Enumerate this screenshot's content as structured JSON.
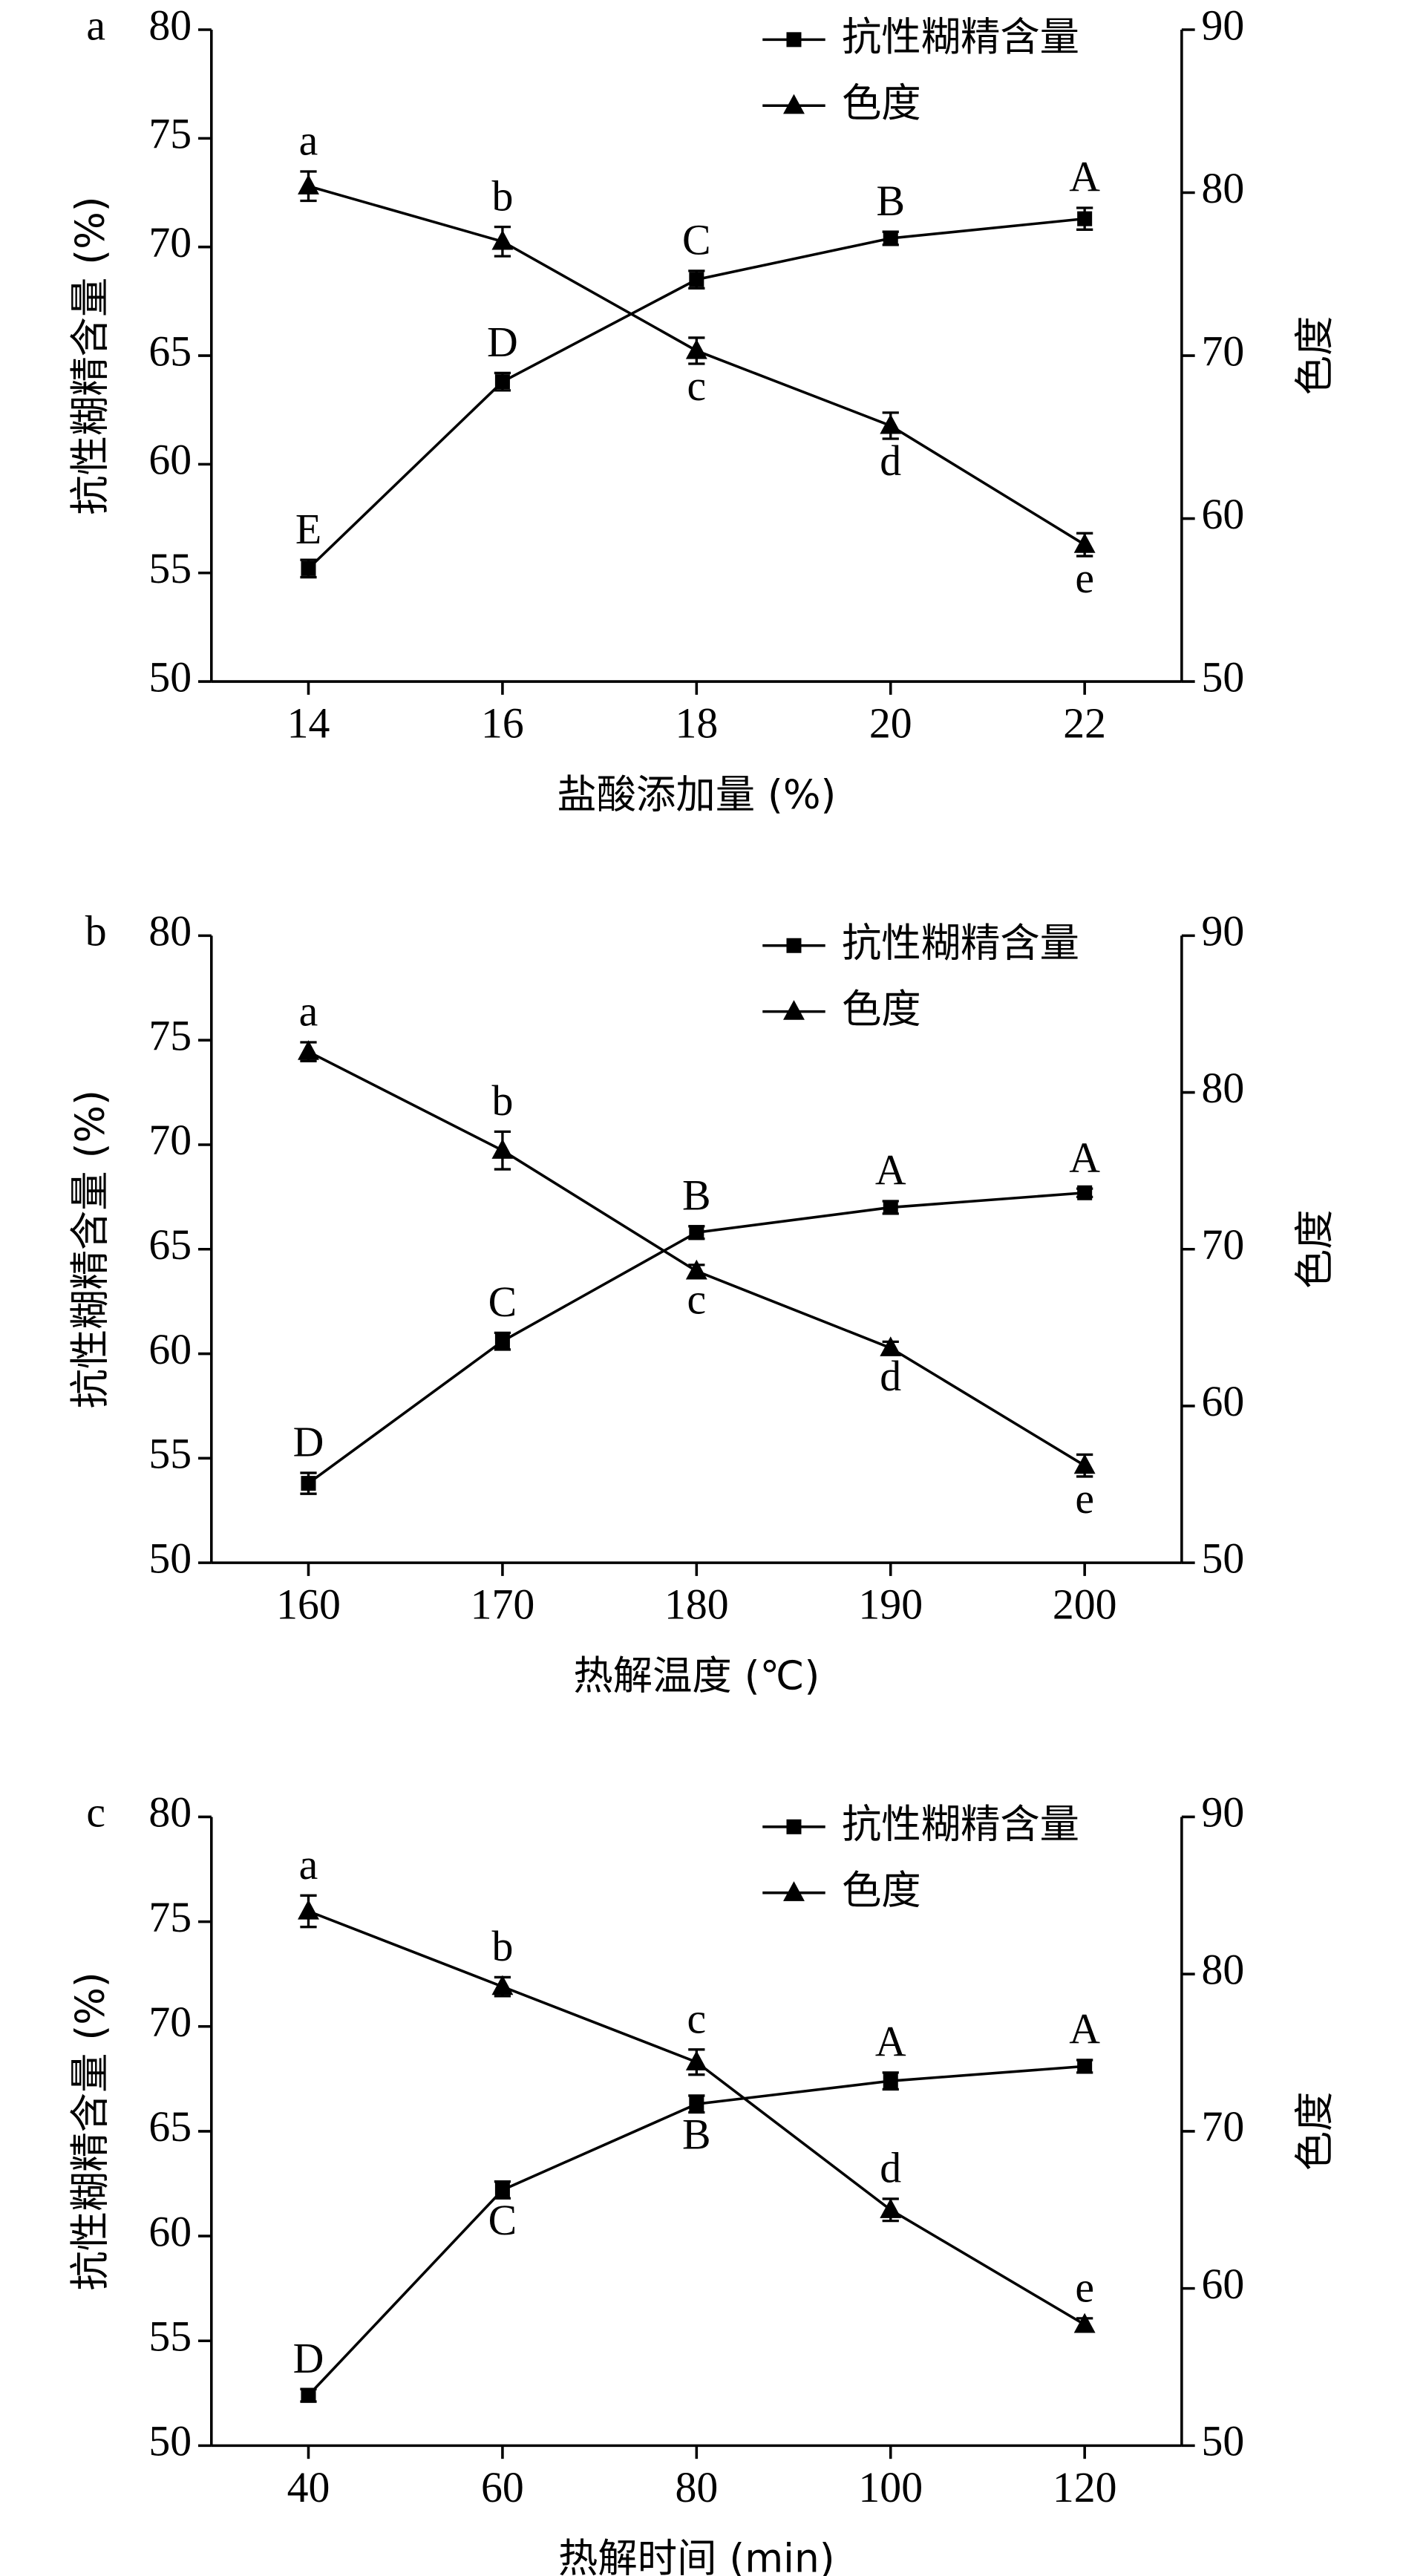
{
  "chart_data": [
    {
      "type": "line",
      "panel_label": "a",
      "x_label": "盐酸添加量 (%)",
      "y_label": "抗性糊精含量 (%)",
      "y2_label": "色度",
      "x": [
        14,
        16,
        18,
        20,
        22
      ],
      "xlim": [
        13,
        23
      ],
      "xticks": [
        14,
        16,
        18,
        20,
        22
      ],
      "ylim": [
        50,
        80
      ],
      "yticks": [
        50,
        55,
        60,
        65,
        70,
        75,
        80
      ],
      "y2lim": [
        50,
        90
      ],
      "y2ticks": [
        50,
        60,
        70,
        80,
        90
      ],
      "series": [
        {
          "name": "抗性糊精含量",
          "color": "#000000",
          "marker": "square",
          "values": [
            55.2,
            63.8,
            68.5,
            70.4,
            71.3
          ],
          "errors": [
            0.4,
            0.4,
            0.4,
            0.3,
            0.5
          ],
          "letters": [
            "E",
            "D",
            "C",
            "B",
            "A"
          ]
        },
        {
          "name": "色度",
          "axis": "y2",
          "color": "#000000",
          "marker": "triangle",
          "values": [
            80.4,
            77.0,
            70.3,
            65.7,
            58.4
          ],
          "errors": [
            0.9,
            0.9,
            0.8,
            0.8,
            0.7
          ],
          "letters": [
            "a",
            "b",
            "c",
            "d",
            "e"
          ]
        }
      ]
    },
    {
      "type": "line",
      "panel_label": "b",
      "x_label": "热解温度 (℃)",
      "y_label": "抗性糊精含量 (%)",
      "y2_label": "色度",
      "x": [
        160,
        170,
        180,
        190,
        200
      ],
      "xlim": [
        155,
        205
      ],
      "xticks": [
        160,
        170,
        180,
        190,
        200
      ],
      "ylim": [
        50,
        80
      ],
      "yticks": [
        50,
        55,
        60,
        65,
        70,
        75,
        80
      ],
      "y2lim": [
        50,
        90
      ],
      "y2ticks": [
        50,
        60,
        70,
        80,
        90
      ],
      "series": [
        {
          "name": "抗性糊精含量",
          "color": "#000000",
          "marker": "square",
          "values": [
            53.8,
            60.6,
            65.8,
            67.0,
            67.7
          ],
          "errors": [
            0.5,
            0.4,
            0.3,
            0.3,
            0.2
          ],
          "letters": [
            "D",
            "C",
            "B",
            "A",
            "A"
          ]
        },
        {
          "name": "色度",
          "axis": "y2",
          "color": "#000000",
          "marker": "triangle",
          "values": [
            82.6,
            76.3,
            68.6,
            63.7,
            56.2
          ],
          "errors": [
            0.6,
            1.2,
            0.4,
            0.4,
            0.7
          ],
          "letters": [
            "a",
            "b",
            "c",
            "d",
            "e"
          ]
        }
      ]
    },
    {
      "type": "line",
      "panel_label": "c",
      "x_label": "热解时间 (min)",
      "y_label": "抗性糊精含量 (%)",
      "y2_label": "色度",
      "x": [
        40,
        60,
        80,
        100,
        120
      ],
      "xlim": [
        30,
        130
      ],
      "xticks": [
        40,
        60,
        80,
        100,
        120
      ],
      "ylim": [
        50,
        80
      ],
      "yticks": [
        50,
        55,
        60,
        65,
        70,
        75,
        80
      ],
      "y2lim": [
        50,
        90
      ],
      "y2ticks": [
        50,
        60,
        70,
        80,
        90
      ],
      "series": [
        {
          "name": "抗性糊精含量",
          "color": "#000000",
          "marker": "square",
          "values": [
            52.4,
            62.2,
            66.3,
            67.4,
            68.1
          ],
          "errors": [
            0.3,
            0.4,
            0.4,
            0.4,
            0.3
          ],
          "letters": [
            "D",
            "C",
            "B",
            "A",
            "A"
          ]
        },
        {
          "name": "色度",
          "axis": "y2",
          "color": "#000000",
          "marker": "triangle",
          "values": [
            84.0,
            79.2,
            74.4,
            65.0,
            57.7
          ],
          "errors": [
            1.0,
            0.6,
            0.8,
            0.7,
            0.4
          ],
          "letters": [
            "a",
            "b",
            "c",
            "d",
            "e"
          ]
        }
      ]
    }
  ]
}
